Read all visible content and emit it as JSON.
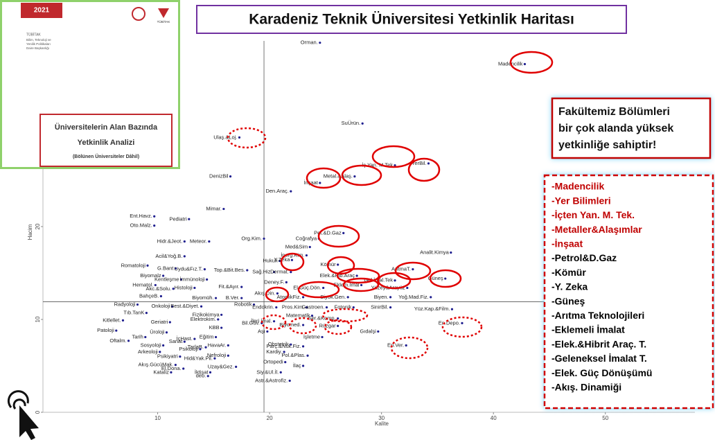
{
  "thumbnail": {
    "year": "2021",
    "org": "TÜBİTAK",
    "dept": [
      "Bilim, Teknoloji ve",
      "Yenilik Politikaları",
      "Daire Başkanlığı"
    ],
    "logo": "TÜBİTAK",
    "report": [
      "Üniversitelerin Alan Bazında",
      "Yetkinlik Analizi"
    ],
    "note": "(Bölünen Üniversiteler Dâhil)"
  },
  "title": "Karadeniz Teknik Üniversitesi Yetkinlik Haritası",
  "callout": [
    "Fakültemiz Bölümleri",
    "bir çok alanda yüksek",
    "yetkinliğe sahiptir!"
  ],
  "list": [
    {
      "text": "-Madencilik",
      "color": "#c00000"
    },
    {
      "text": "-Yer Bilimleri",
      "color": "#c00000"
    },
    {
      "text": "-İçten Yan. M. Tek.",
      "color": "#c00000"
    },
    {
      "text": "-Metaller&Alaşımlar",
      "color": "#c00000"
    },
    {
      "text": "-İnşaat",
      "color": "#c00000"
    },
    {
      "text": "-Petrol&D.Gaz",
      "color": "#000000"
    },
    {
      "text": "-Kömür",
      "color": "#000000"
    },
    {
      "text": "-Y. Zeka",
      "color": "#000000"
    },
    {
      "text": "-Güneş",
      "color": "#000000"
    },
    {
      "text": "-Arıtma Teknolojileri",
      "color": "#000000"
    },
    {
      "text": "-Eklemeli İmalat",
      "color": "#000000"
    },
    {
      "text": "-Elek.&Hibrit Araç. T.",
      "color": "#000000"
    },
    {
      "text": "-Geleneksel İmalat T.",
      "color": "#000000"
    },
    {
      "text": "-Elek. Güç Dönüşümü",
      "color": "#000000"
    },
    {
      "text": "-Akış. Dinamiği",
      "color": "#000000"
    }
  ],
  "chart_data": {
    "type": "scatter",
    "x_label": "Kalite",
    "y_label": "Hacim",
    "color": "#1f1f8f",
    "xlim": [
      0,
      58
    ],
    "ylim": [
      0,
      40
    ],
    "xticks": [
      10,
      20,
      30,
      40,
      50
    ],
    "yticks": [
      0,
      10,
      20
    ],
    "reference_lines": {
      "x": 19.5,
      "y": 11.9
    },
    "labels": [
      "Orman.",
      "Madencilik",
      "SuÜrün.",
      "İç Yan. M.Tek",
      "YerBil.",
      "Metal.&Alaş.",
      "İnşaat",
      "Den.Araç.",
      "Ulaş.&Loj.",
      "DenizBil",
      "Mimar.",
      "Ent.Havz.",
      "Pediatri",
      "Oto.Malz.",
      "Hidr.&Jeot.",
      "Meteor.",
      "Org.Kim.",
      "Pet.&D.Gaz",
      "Coğrafya",
      "Med&Sim",
      "Analit.Kimya",
      "İnorg.Kim.",
      "Acil&Yoğ.B.",
      "Hukuk",
      "Y.Zeka",
      "Kömür",
      "Romatoloji",
      "G.Bant",
      "Uydu&Fız.T.",
      "Top.&Bit.Bes.",
      "Sağ.Hiz.",
      "Dermat.",
      "ArıtmaT.",
      "Biyomalz",
      "Kentleşme",
      "İmmünoloji",
      "Elek.&Hib.Araç",
      "Güneş",
      "Deney.F.",
      "Gel.İmal.Tek",
      "Hematol.",
      "Akc.&Solu.",
      "Histoloji",
      "Fit.&Ayır.",
      "El.Güç.Dön.",
      "Eklem.İmal",
      "Yüzey&Arayüz",
      "BahçeB.",
      "Biyomüh.",
      "B.Ver.",
      "Akış.Din.",
      "AtomikFiz.",
      "Biyok.Gen.",
      "Biyen.",
      "Yoğ.Mad.Fiz.",
      "Radyoloji",
      "Onkoloji",
      "Best.&Diyet.",
      "Robotik",
      "Endokrin.",
      "Pros.Kim.",
      "Gastroen.",
      "Fotonik",
      "SinirBil.",
      "Yüz.Kap.&Film.",
      "Tıb.TanK",
      "Fizikokimya",
      "Elektrokim.",
      "Matematik",
      "Ser.&Komp.",
      "Kitlellet.",
      "Geriatri",
      "Bil.Güv.",
      "İleri İmal.",
      "Biyomed.",
      "Rüzgar",
      "En.Depo.",
      "KBB",
      "Patoloji",
      "Üroloji",
      "Aşı",
      "İşletme",
      "Gıdalşi",
      "Tarih",
      "Eğitim",
      "Oftalm.",
      "Sanat",
      "İçHast.",
      "Obstetrik",
      "En.Ver.",
      "Sosyoloji",
      "HavaAr.",
      "TarlaB.",
      "Parç.&Nük.Fiz.",
      "Arkeoloji",
      "Psikoloji",
      "Kardiy.",
      "Nefroloji",
      "Pol.&Plas.",
      "Hid&Yak.Pil.",
      "Psikiyatri",
      "Uzay&Gez.",
      "İlaç",
      "Ortopedi",
      "Akış.GücüMak.",
      "El.Dona.",
      "Kataliz",
      "İktisat",
      "deb.",
      "Siy.&Ul.İl.",
      "Astr.&Astrofiz."
    ],
    "x": [
      24.5,
      42.8,
      28.3,
      31.2,
      34.2,
      27.6,
      24.5,
      21.9,
      17.3,
      16.5,
      15.9,
      9.7,
      12.8,
      9.7,
      12.4,
      14.6,
      19.5,
      26.6,
      24.4,
      23.6,
      36.2,
      23.3,
      12.4,
      20.9,
      22.0,
      26.1,
      9.1,
      11.6,
      14.2,
      18.0,
      20.4,
      21.9,
      32.8,
      10.5,
      12.1,
      14.4,
      27.8,
      35.7,
      21.5,
      31.2,
      9.8,
      11.4,
      13.3,
      17.5,
      24.8,
      28.2,
      32.3,
      10.3,
      15.2,
      17.5,
      20.7,
      23.0,
      27.0,
      30.8,
      34.4,
      8.2,
      11.3,
      13.9,
      18.6,
      20.6,
      23.3,
      25.1,
      27.5,
      30.8,
      36.3,
      9.0,
      15.7,
      15.4,
      23.8,
      26.1,
      6.9,
      11.1,
      19.3,
      20.4,
      23.0,
      26.1,
      37.2,
      15.7,
      6.3,
      10.8,
      19.8,
      24.7,
      29.7,
      8.9,
      15.2,
      7.4,
      12.4,
      13.3,
      21.9,
      32.2,
      10.5,
      16.3,
      14.3,
      23.0,
      10.2,
      13.8,
      21.3,
      16.3,
      23.4,
      15.1,
      12.0,
      17.0,
      23.0,
      21.4,
      11.6,
      12.3,
      11.2,
      14.7,
      14.5,
      21.0,
      21.8
    ],
    "values": [
      39.8,
      37.5,
      31.1,
      26.6,
      26.8,
      25.4,
      24.7,
      23.8,
      29.6,
      25.4,
      21.9,
      21.1,
      20.8,
      20.1,
      18.4,
      18.4,
      18.7,
      19.3,
      18.7,
      17.8,
      17.2,
      16.9,
      16.8,
      16.3,
      16.4,
      15.9,
      15.8,
      15.5,
      15.4,
      15.3,
      15.1,
      15.1,
      15.4,
      14.7,
      14.3,
      14.3,
      14.7,
      14.4,
      14.0,
      14.2,
      13.7,
      13.3,
      13.4,
      13.5,
      13.4,
      13.7,
      13.4,
      12.5,
      12.3,
      12.3,
      12.8,
      12.4,
      12.4,
      12.4,
      12.4,
      11.6,
      11.4,
      11.4,
      11.6,
      11.3,
      11.3,
      11.3,
      11.3,
      11.3,
      11.1,
      10.7,
      10.5,
      10.0,
      10.4,
      10.1,
      9.9,
      9.7,
      9.6,
      9.8,
      9.4,
      9.3,
      9.6,
      9.1,
      8.8,
      8.6,
      8.7,
      8.1,
      8.7,
      8.1,
      8.1,
      7.7,
      7.6,
      7.9,
      7.3,
      7.2,
      7.2,
      7.2,
      7.0,
      7.1,
      6.5,
      6.8,
      6.5,
      6.1,
      6.1,
      5.8,
      6.0,
      4.9,
      5.0,
      5.4,
      5.1,
      4.7,
      4.3,
      4.3,
      3.9,
      4.3,
      3.4
    ]
  }
}
